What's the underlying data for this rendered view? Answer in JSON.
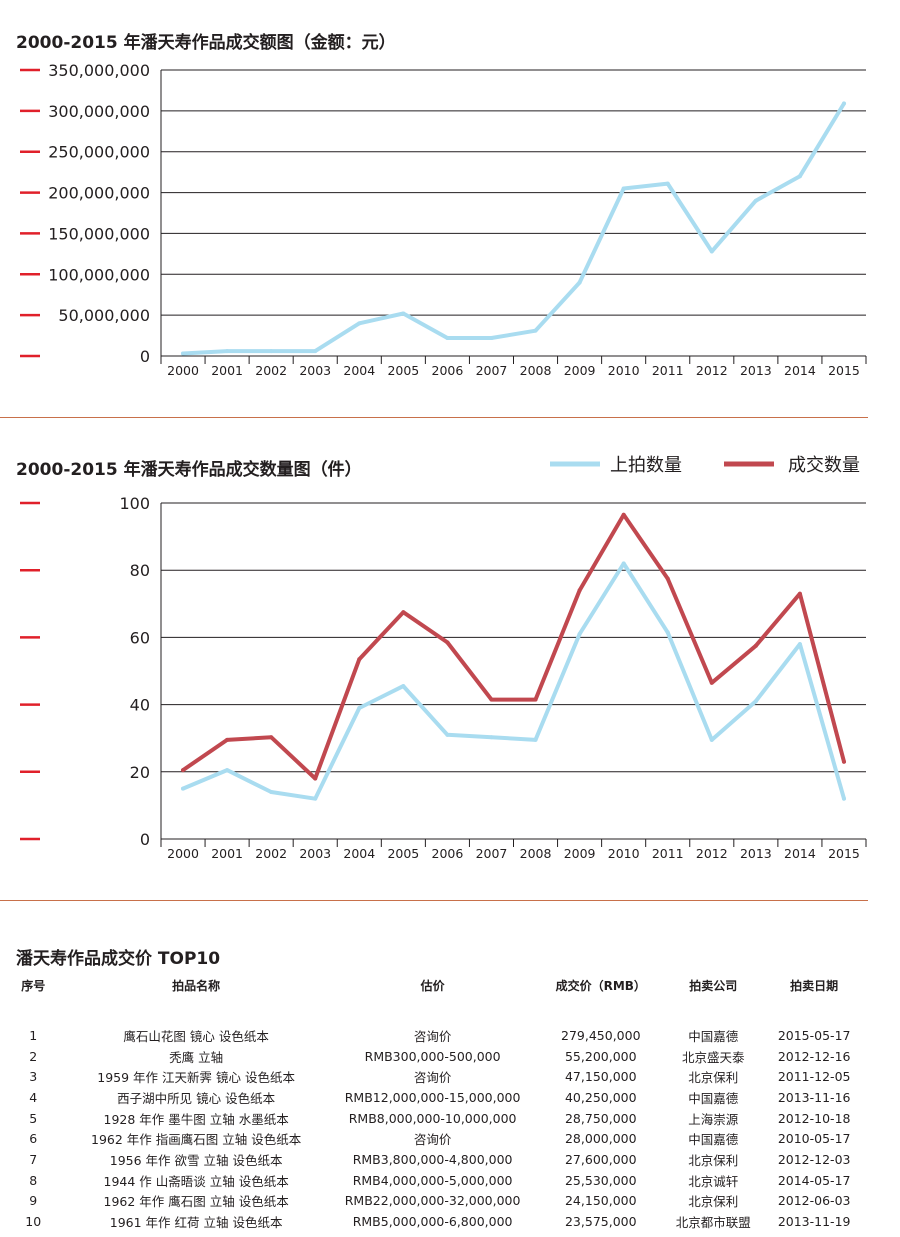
{
  "amount_chart": {
    "title": "2000-2015 年潘天寿作品成交额图（金额：元）"
  },
  "count_chart": {
    "title": "2000-2015 年潘天寿作品成交数量图（件）"
  },
  "chart_data": [
    {
      "type": "line",
      "title": "2000-2015 年潘天寿作品成交额图（金额：元）",
      "xlabel": "",
      "ylabel": "",
      "categories": [
        "2000",
        "2001",
        "2002",
        "2003",
        "2004",
        "2005",
        "2006",
        "2007",
        "2008",
        "2009",
        "2010",
        "2011",
        "2012",
        "2013",
        "2014",
        "2015"
      ],
      "y_ticks": [
        "0",
        "50,000,000",
        "100,000,000",
        "150,000,000",
        "200,000,000",
        "250,000,000",
        "300,000,000",
        "350,000,000"
      ],
      "ylim": [
        0,
        350000000
      ],
      "grid": true,
      "series": [
        {
          "color": "#a9dcf0",
          "values": [
            3000000,
            6000000,
            6000000,
            6000000,
            40000000,
            52000000,
            22000000,
            22000000,
            31000000,
            90000000,
            205000000,
            211000000,
            128000000,
            190000000,
            220000000,
            309000000
          ]
        }
      ]
    },
    {
      "type": "line",
      "title": "2000-2015 年潘天寿作品成交数量图（件）",
      "xlabel": "",
      "ylabel": "",
      "categories": [
        "2000",
        "2001",
        "2002",
        "2003",
        "2004",
        "2005",
        "2006",
        "2007",
        "2008",
        "2009",
        "2010",
        "2011",
        "2012",
        "2013",
        "2014",
        "2015"
      ],
      "y_ticks": [
        "0",
        "20",
        "40",
        "60",
        "80",
        "100"
      ],
      "ylim": [
        0,
        100
      ],
      "grid": true,
      "legend": "top-right",
      "series": [
        {
          "name": "上拍数量",
          "color": "#a9dcf0",
          "values": [
            15,
            20.5,
            14,
            12,
            39,
            45.5,
            31,
            30.3,
            29.5,
            61,
            82,
            61.5,
            29.5,
            41,
            58,
            12
          ]
        },
        {
          "name": "成交数量",
          "color": "#c1484f",
          "values": [
            20.5,
            29.5,
            30.3,
            18,
            53.5,
            67.5,
            58.5,
            41.5,
            41.5,
            74,
            96.5,
            77.5,
            46.5,
            57.5,
            73,
            23
          ]
        }
      ]
    }
  ],
  "top10": {
    "title": "潘天寿作品成交价 TOP10",
    "headers": {
      "rank": "序号",
      "name": "拍品名称",
      "estimate": "估价",
      "price": "成交价（RMB）",
      "house": "拍卖公司",
      "date": "拍卖日期"
    },
    "rows": [
      {
        "rank": "1",
        "name": "鹰石山花图 镜心 设色纸本",
        "estimate": "咨询价",
        "price": "279,450,000",
        "house": "中国嘉德",
        "date": "2015-05-17"
      },
      {
        "rank": "2",
        "name": "秃鹰 立轴",
        "estimate": "RMB300,000-500,000",
        "price": "55,200,000",
        "house": "北京盛天泰",
        "date": "2012-12-16"
      },
      {
        "rank": "3",
        "name": "1959 年作 江天新霁 镜心 设色纸本",
        "estimate": "咨询价",
        "price": "47,150,000",
        "house": "北京保利",
        "date": "2011-12-05"
      },
      {
        "rank": "4",
        "name": "西子湖中所见 镜心 设色纸本",
        "estimate": "RMB12,000,000-15,000,000",
        "price": "40,250,000",
        "house": "中国嘉德",
        "date": "2013-11-16"
      },
      {
        "rank": "5",
        "name": "1928 年作 墨牛图 立轴 水墨纸本",
        "estimate": "RMB8,000,000-10,000,000",
        "price": "28,750,000",
        "house": "上海崇源",
        "date": "2012-10-18"
      },
      {
        "rank": "6",
        "name": "1962 年作 指画鹰石图 立轴 设色纸本",
        "estimate": "咨询价",
        "price": "28,000,000",
        "house": "中国嘉德",
        "date": "2010-05-17"
      },
      {
        "rank": "7",
        "name": "1956 年作 欲雪 立轴 设色纸本",
        "estimate": "RMB3,800,000-4,800,000",
        "price": "27,600,000",
        "house": "北京保利",
        "date": "2012-12-03"
      },
      {
        "rank": "8",
        "name": "1944 作 山斋晤谈 立轴 设色纸本",
        "estimate": "RMB4,000,000-5,000,000",
        "price": "25,530,000",
        "house": "北京诚轩",
        "date": "2014-05-17"
      },
      {
        "rank": "9",
        "name": "1962 年作 鹰石图 立轴 设色纸本",
        "estimate": "RMB22,000,000-32,000,000",
        "price": "24,150,000",
        "house": "北京保利",
        "date": "2012-06-03"
      },
      {
        "rank": "10",
        "name": "1961 年作 红荷 立轴 设色纸本",
        "estimate": "RMB5,000,000-6,800,000",
        "price": "23,575,000",
        "house": "北京都市联盟",
        "date": "2013-11-19"
      }
    ]
  }
}
